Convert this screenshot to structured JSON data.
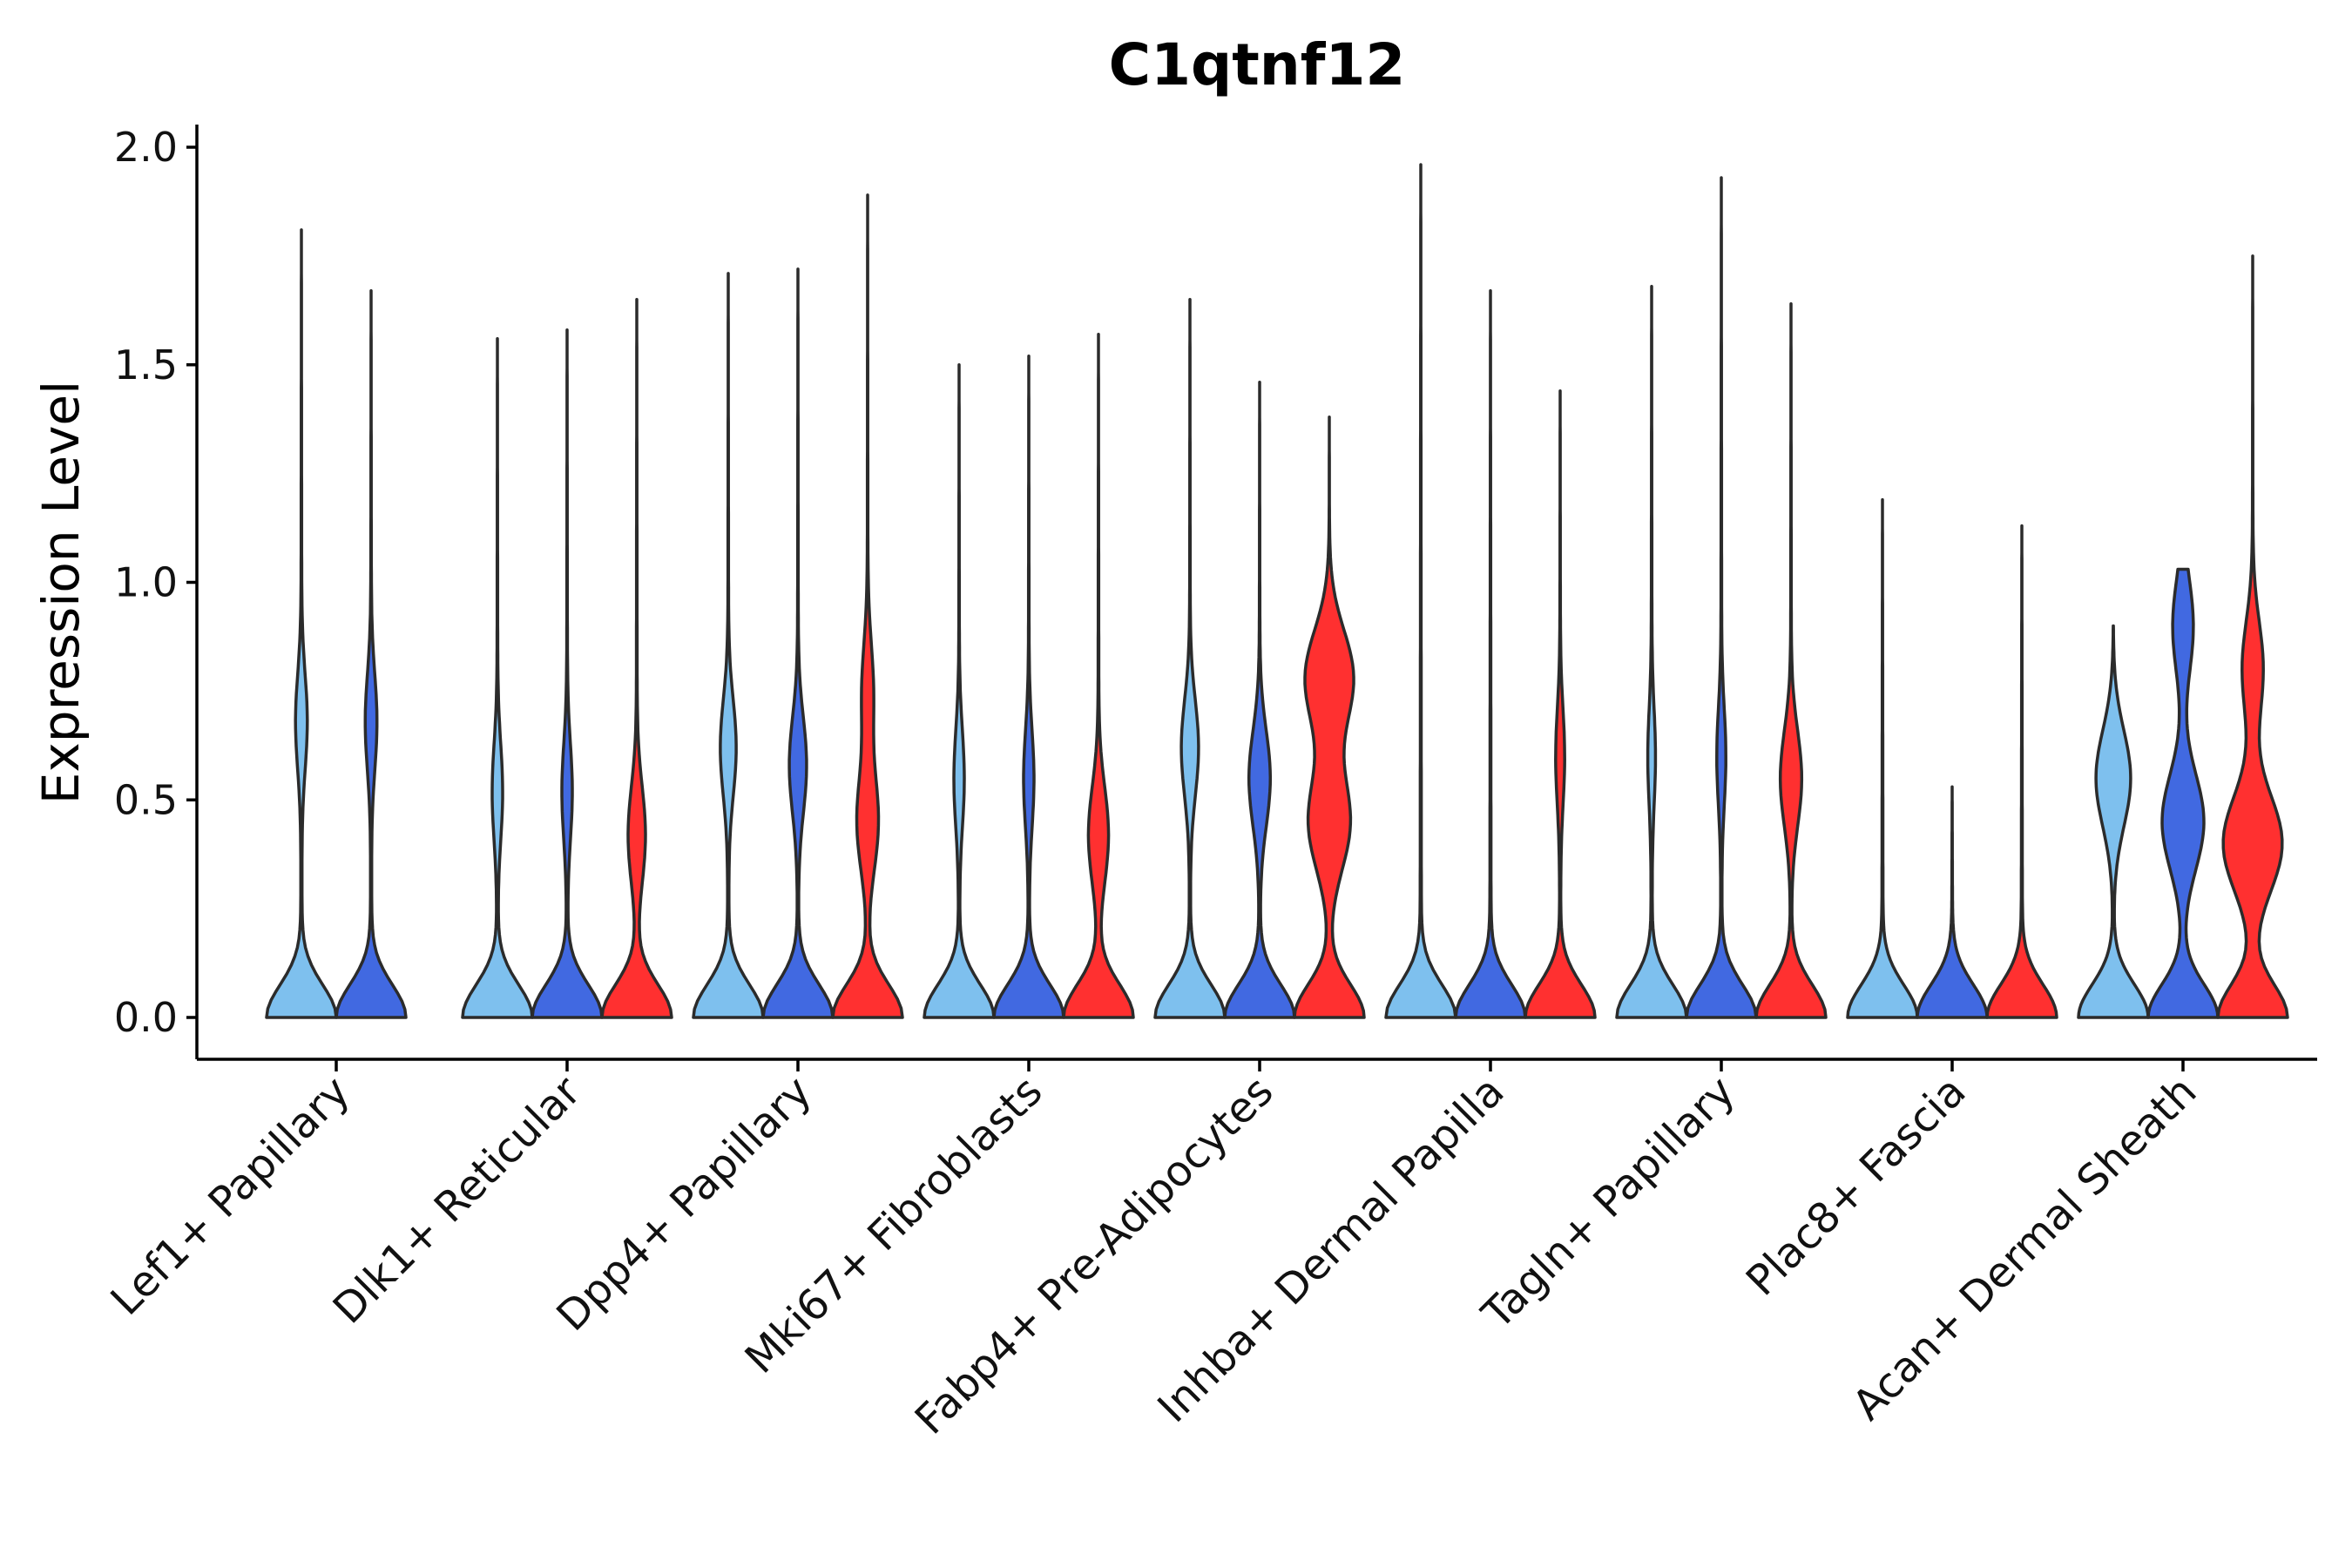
{
  "chart_data": {
    "type": "violin",
    "title": "C1qtnf12",
    "xlabel": "",
    "ylabel": "Expression Level",
    "ylim": [
      -0.1,
      2.05
    ],
    "yticks": [
      0.0,
      0.5,
      1.0,
      1.5,
      2.0
    ],
    "ytick_labels": [
      "0.0",
      "0.5",
      "1.0",
      "1.5",
      "2.0"
    ],
    "series_colors": {
      "light_blue": "#7ec0ee",
      "blue": "#4169e1",
      "red": "#ff3030"
    },
    "categories": [
      "Lef1+ Papillary",
      "Dlk1+ Reticular",
      "Dpp4+ Papillary",
      "Mki67+ Fibroblasts",
      "Fabp4+ Pre-Adipocytes",
      "Inhba+ Dermal Papilla",
      "Tagln+ Papillary",
      "Plac8+ Fascia",
      "Acan+ Dermal Sheath"
    ],
    "groups": [
      {
        "category": "Lef1+ Papillary",
        "violins": [
          {
            "series": "light_blue",
            "max": 1.81,
            "modes": [
              [
                0.0,
                1.0
              ],
              [
                0.68,
                0.16
              ]
            ]
          },
          {
            "series": "blue",
            "max": 1.67,
            "modes": [
              [
                0.0,
                1.0
              ],
              [
                0.68,
                0.16
              ]
            ]
          }
        ]
      },
      {
        "category": "Dlk1+ Reticular",
        "violins": [
          {
            "series": "light_blue",
            "max": 1.56,
            "modes": [
              [
                0.0,
                1.0
              ],
              [
                0.52,
                0.14
              ]
            ]
          },
          {
            "series": "blue",
            "max": 1.58,
            "modes": [
              [
                0.0,
                1.0
              ],
              [
                0.52,
                0.14
              ]
            ]
          },
          {
            "series": "red",
            "max": 1.65,
            "modes": [
              [
                0.0,
                1.0
              ],
              [
                0.42,
                0.24
              ]
            ]
          }
        ]
      },
      {
        "category": "Dpp4+ Papillary",
        "violins": [
          {
            "series": "light_blue",
            "max": 1.71,
            "modes": [
              [
                0.0,
                1.0
              ],
              [
                0.62,
                0.22
              ]
            ]
          },
          {
            "series": "blue",
            "max": 1.72,
            "modes": [
              [
                0.0,
                1.0
              ],
              [
                0.58,
                0.24
              ]
            ]
          },
          {
            "series": "red",
            "max": 1.89,
            "modes": [
              [
                0.0,
                1.0
              ],
              [
                0.45,
                0.3
              ],
              [
                0.75,
                0.16
              ]
            ]
          }
        ]
      },
      {
        "category": "Mki67+ Fibroblasts",
        "violins": [
          {
            "series": "light_blue",
            "max": 1.5,
            "modes": [
              [
                0.0,
                1.0
              ],
              [
                0.55,
                0.14
              ]
            ]
          },
          {
            "series": "blue",
            "max": 1.52,
            "modes": [
              [
                0.0,
                1.0
              ],
              [
                0.55,
                0.14
              ]
            ]
          },
          {
            "series": "red",
            "max": 1.57,
            "modes": [
              [
                0.0,
                1.0
              ],
              [
                0.42,
                0.28
              ]
            ]
          }
        ]
      },
      {
        "category": "Fabp4+ Pre-Adipocytes",
        "violins": [
          {
            "series": "light_blue",
            "max": 1.65,
            "modes": [
              [
                0.0,
                1.0
              ],
              [
                0.62,
                0.24
              ]
            ]
          },
          {
            "series": "blue",
            "max": 1.46,
            "modes": [
              [
                0.0,
                1.0
              ],
              [
                0.55,
                0.3
              ]
            ]
          },
          {
            "series": "red",
            "max": 1.38,
            "modes": [
              [
                0.0,
                1.0
              ],
              [
                0.45,
                0.6
              ],
              [
                0.78,
                0.7
              ]
            ]
          }
        ]
      },
      {
        "category": "Inhba+ Dermal Papilla",
        "violins": [
          {
            "series": "light_blue",
            "max": 1.96,
            "modes": [
              [
                0.0,
                1.0
              ]
            ]
          },
          {
            "series": "blue",
            "max": 1.67,
            "modes": [
              [
                0.0,
                1.0
              ]
            ]
          },
          {
            "series": "red",
            "max": 1.44,
            "modes": [
              [
                0.0,
                1.0
              ],
              [
                0.6,
                0.12
              ]
            ]
          }
        ]
      },
      {
        "category": "Tagln+ Papillary",
        "violins": [
          {
            "series": "light_blue",
            "max": 1.68,
            "modes": [
              [
                0.0,
                1.0
              ],
              [
                0.6,
                0.1
              ]
            ]
          },
          {
            "series": "blue",
            "max": 1.93,
            "modes": [
              [
                0.0,
                1.0
              ],
              [
                0.6,
                0.12
              ]
            ]
          },
          {
            "series": "red",
            "max": 1.64,
            "modes": [
              [
                0.0,
                1.0
              ],
              [
                0.55,
                0.3
              ]
            ]
          }
        ]
      },
      {
        "category": "Plac8+ Fascia",
        "violins": [
          {
            "series": "light_blue",
            "max": 1.19,
            "modes": [
              [
                0.0,
                1.0
              ]
            ]
          },
          {
            "series": "blue",
            "max": 0.53,
            "modes": [
              [
                0.0,
                1.0
              ]
            ]
          },
          {
            "series": "red",
            "max": 1.13,
            "modes": [
              [
                0.0,
                1.0
              ]
            ]
          }
        ]
      },
      {
        "category": "Acan+ Dermal Sheath",
        "violins": [
          {
            "series": "light_blue",
            "max": 0.9,
            "modes": [
              [
                0.0,
                1.0
              ],
              [
                0.55,
                0.5
              ]
            ]
          },
          {
            "series": "blue",
            "max": 1.03,
            "modes": [
              [
                0.0,
                1.0
              ],
              [
                0.45,
                0.6
              ],
              [
                0.9,
                0.3
              ]
            ]
          },
          {
            "series": "red",
            "max": 1.75,
            "modes": [
              [
                0.0,
                1.0
              ],
              [
                0.4,
                0.85
              ],
              [
                0.8,
                0.3
              ]
            ]
          }
        ]
      }
    ],
    "legend": "none",
    "grid": false
  }
}
